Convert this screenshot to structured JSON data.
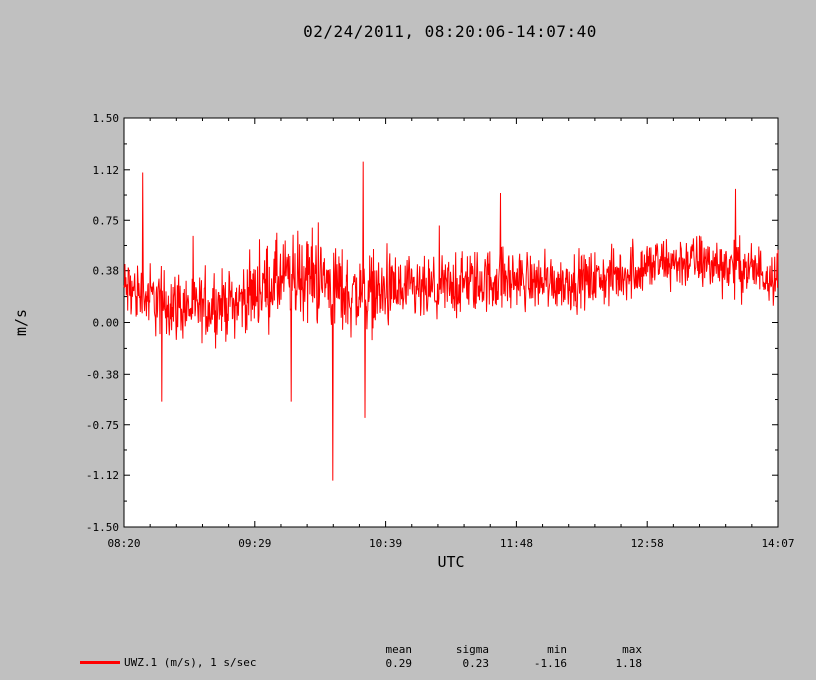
{
  "title": "02/24/2011, 08:20:06-14:07:40",
  "chart_data": {
    "type": "line",
    "xlabel": "UTC",
    "ylabel": "m/s",
    "x_range": [
      "08:20:06",
      "14:07:40"
    ],
    "x_ticks": [
      "08:20",
      "09:29",
      "10:39",
      "11:48",
      "12:58",
      "14:07"
    ],
    "y_ticks": [
      "-1.50",
      "-1.12",
      "-0.75",
      "-0.38",
      "0.00",
      "0.38",
      "0.75",
      "1.12",
      "1.50"
    ],
    "ylim": [
      -1.5,
      1.5
    ],
    "grid": false,
    "series": [
      {
        "name": "UWZ.1 (m/s), 1 s/sec",
        "color": "#ff0000",
        "sample_rate": "1 s/sec",
        "envelope_x_minutes": [
          0,
          20,
          40,
          60,
          80,
          100,
          120,
          140,
          160,
          180,
          200,
          220,
          240,
          260,
          280,
          300,
          320,
          347
        ],
        "envelope_mean": [
          0.25,
          0.15,
          0.1,
          0.15,
          0.3,
          0.35,
          0.2,
          0.22,
          0.22,
          0.28,
          0.32,
          0.3,
          0.3,
          0.33,
          0.42,
          0.45,
          0.42,
          0.35
        ],
        "envelope_halfwidth": [
          0.35,
          0.4,
          0.35,
          0.35,
          0.45,
          0.5,
          0.45,
          0.4,
          0.35,
          0.35,
          0.35,
          0.3,
          0.3,
          0.3,
          0.3,
          0.3,
          0.3,
          0.3
        ],
        "spikes": [
          {
            "t_minutes": 10,
            "value": 1.1
          },
          {
            "t_minutes": 20,
            "value": -0.58
          },
          {
            "t_minutes": 89,
            "value": -0.58
          },
          {
            "t_minutes": 111,
            "value": -1.16
          },
          {
            "t_minutes": 127,
            "value": 1.18
          },
          {
            "t_minutes": 128,
            "value": -0.7
          },
          {
            "t_minutes": 200,
            "value": 0.95
          },
          {
            "t_minutes": 325,
            "value": 0.98
          }
        ]
      }
    ]
  },
  "legend": {
    "label": "UWZ.1 (m/s), 1 s/sec"
  },
  "stats": {
    "mean": {
      "label": "mean",
      "value": "0.29"
    },
    "sigma": {
      "label": "sigma",
      "value": "0.23"
    },
    "min": {
      "label": "min",
      "value": "-1.16"
    },
    "max": {
      "label": "max",
      "value": "1.18"
    }
  }
}
